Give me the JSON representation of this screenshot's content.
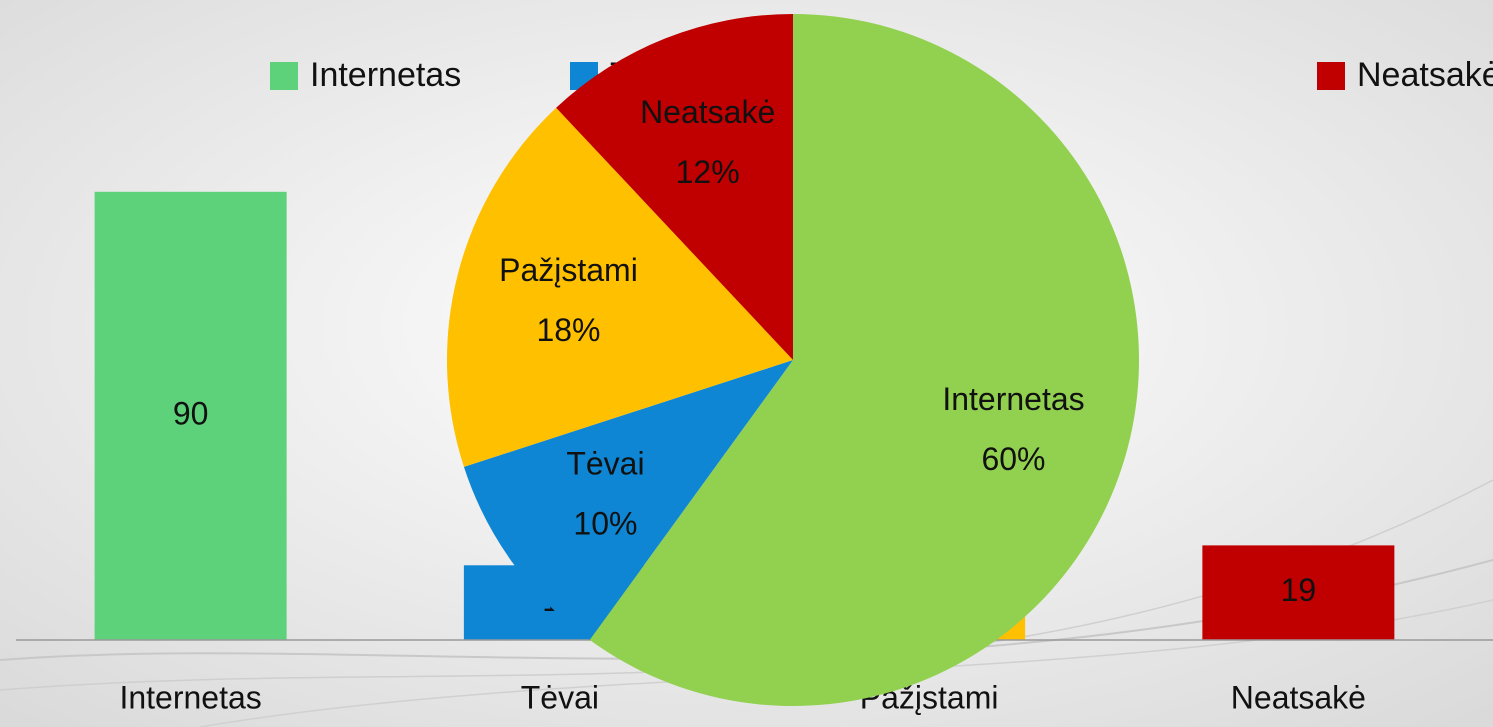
{
  "chart_data": [
    {
      "type": "bar",
      "categories": [
        "Internetas",
        "Tėvai",
        "Pažįstami",
        "Neatsakė"
      ],
      "values": [
        90,
        15,
        27,
        19
      ],
      "colors": [
        "#5dd27a",
        "#0e86d4",
        "#ffc000",
        "#c00000"
      ],
      "ylim": [
        0,
        100
      ],
      "legend": "top"
    },
    {
      "type": "pie",
      "categories": [
        "Internetas",
        "Tėvai",
        "Pažįstami",
        "Neatsakė"
      ],
      "values": [
        60,
        10,
        18,
        12
      ],
      "value_labels": [
        "60%",
        "10%",
        "18%",
        "12%"
      ],
      "colors": [
        "#92d050",
        "#0e86d4",
        "#ffc000",
        "#c00000"
      ]
    }
  ]
}
